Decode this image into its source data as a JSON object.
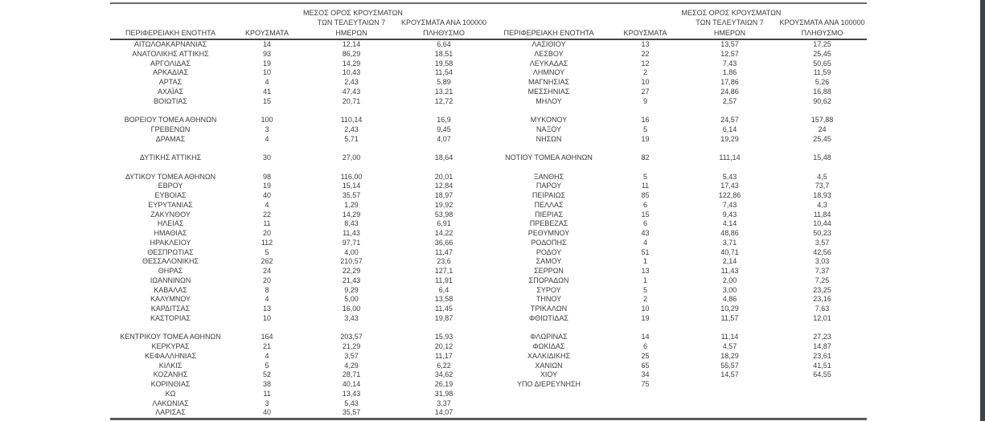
{
  "page": {
    "background": "#ffffff",
    "text_color": "#3c3c3e",
    "rule_color": "#5d5e61",
    "edge_bar_color": "#3e4347"
  },
  "table": {
    "headers": {
      "region": "ΠΕΡΙΦΕΡΕΙΑΚΗ ΕΝΟΤΗΤΑ",
      "cases": "ΚΡΟΥΣΜΑΤΑ",
      "avg7_line1": "ΜΕΣΟΣ ΟΡΟΣ ΚΡΟΥΣΜΑΤΩΝ",
      "avg7_line2": "ΤΩΝ ΤΕΛΕΥΤΑΙΩΝ 7",
      "avg7_line3": "ΗΜΕΡΩΝ",
      "per100k_line1": "ΚΡΟΥΣΜΑΤΑ ΑΝΑ 100000",
      "per100k_line2": "ΠΛΗΘΥΣΜΟ"
    },
    "rows": [
      {
        "left": [
          "ΑΙΤΩΛΟΑΚΑΡΝΑΝΙΑΣ",
          "14",
          "12,14",
          "6,64"
        ],
        "right": [
          "ΛΑΣΙΘΙΟΥ",
          "13",
          "13,57",
          "17,25"
        ]
      },
      {
        "left": [
          "ΑΝΑΤΟΛΙΚΗΣ ΑΤΤΙΚΗΣ",
          "93",
          "86,29",
          "18,51"
        ],
        "right": [
          "ΛΕΣΒΟΥ",
          "22",
          "12,57",
          "25,45"
        ]
      },
      {
        "left": [
          "ΑΡΓΟΛΙΔΑΣ",
          "19",
          "14,29",
          "19,58"
        ],
        "right": [
          "ΛΕΥΚΑΔΑΣ",
          "12",
          "7,43",
          "50,65"
        ]
      },
      {
        "left": [
          "ΑΡΚΑΔΙΑΣ",
          "10",
          "10,43",
          "11,54"
        ],
        "right": [
          "ΛΗΜΝΟΥ",
          "2",
          "1,86",
          "11,59"
        ]
      },
      {
        "left": [
          "ΑΡΤΑΣ",
          "4",
          "2,43",
          "5,89"
        ],
        "right": [
          "ΜΑΓΝΗΣΙΑΣ",
          "10",
          "17,86",
          "5,26"
        ]
      },
      {
        "left": [
          "ΑΧΑΪΑΣ",
          "41",
          "47,43",
          "13,21"
        ],
        "right": [
          "ΜΕΣΣΗΝΙΑΣ",
          "27",
          "24,86",
          "16,88"
        ]
      },
      {
        "left": [
          "ΒΟΙΩΤΙΑΣ",
          "15",
          "20,71",
          "12,72"
        ],
        "right": [
          "ΜΗΛΟΥ",
          "9",
          "2,57",
          "90,62"
        ]
      },
      {
        "left": [
          "",
          "",
          "",
          ""
        ],
        "right": [
          "",
          "",
          "",
          ""
        ]
      },
      {
        "left": [
          "ΒΟΡΕΙΟΥ ΤΟΜΕΑ ΑΘΗΝΩΝ",
          "100",
          "110,14",
          "16,9"
        ],
        "right": [
          "ΜΥΚΟΝΟΥ",
          "16",
          "24,57",
          "157,88"
        ]
      },
      {
        "left": [
          "ΓΡΕΒΕΝΩΝ",
          "3",
          "2,43",
          "9,45"
        ],
        "right": [
          "ΝΑΞΟΥ",
          "5",
          "6,14",
          "24"
        ]
      },
      {
        "left": [
          "ΔΡΑΜΑΣ",
          "4",
          "5,71",
          "4,07"
        ],
        "right": [
          "ΝΗΣΩΝ",
          "19",
          "19,29",
          "25,45"
        ]
      },
      {
        "left": [
          "",
          "",
          "",
          ""
        ],
        "right": [
          "",
          "",
          "",
          ""
        ]
      },
      {
        "left": [
          "ΔΥΤΙΚΗΣ ΑΤΤΙΚΗΣ",
          "30",
          "27,00",
          "18,64"
        ],
        "right": [
          "ΝΟΤΙΟΥ ΤΟΜΕΑ ΑΘΗΝΩΝ",
          "82",
          "111,14",
          "15,48"
        ]
      },
      {
        "left": [
          "",
          "",
          "",
          ""
        ],
        "right": [
          "",
          "",
          "",
          ""
        ]
      },
      {
        "left": [
          "ΔΥΤΙΚΟΥ ΤΟΜΕΑ ΑΘΗΝΩΝ",
          "98",
          "116,00",
          "20,01"
        ],
        "right": [
          "ΞΑΝΘΗΣ",
          "5",
          "5,43",
          "4,5"
        ]
      },
      {
        "left": [
          "ΕΒΡΟΥ",
          "19",
          "15,14",
          "12,84"
        ],
        "right": [
          "ΠΑΡΟΥ",
          "11",
          "17,43",
          "73,7"
        ]
      },
      {
        "left": [
          "ΕΥΒΟΙΑΣ",
          "40",
          "35,57",
          "18,97"
        ],
        "right": [
          "ΠΕΙΡΑΙΩΣ",
          "85",
          "122,86",
          "18,93"
        ]
      },
      {
        "left": [
          "ΕΥΡΥΤΑΝΙΑΣ",
          "4",
          "1,29",
          "19,92"
        ],
        "right": [
          "ΠΕΛΛΑΣ",
          "6",
          "7,43",
          "4,3"
        ]
      },
      {
        "left": [
          "ΖΑΚΥΝΘΟΥ",
          "22",
          "14,29",
          "53,98"
        ],
        "right": [
          "ΠΙΕΡΙΑΣ",
          "15",
          "9,43",
          "11,84"
        ]
      },
      {
        "left": [
          "ΗΛΕΙΑΣ",
          "11",
          "8,43",
          "6,91"
        ],
        "right": [
          "ΠΡΕΒΕΖΑΣ",
          "6",
          "4,14",
          "10,44"
        ]
      },
      {
        "left": [
          "ΗΜΑΘΙΑΣ",
          "20",
          "11,43",
          "14,22"
        ],
        "right": [
          "ΡΕΘΥΜΝΟΥ",
          "43",
          "48,86",
          "50,23"
        ]
      },
      {
        "left": [
          "ΗΡΑΚΛΕΙΟΥ",
          "112",
          "97,71",
          "36,66"
        ],
        "right": [
          "ΡΟΔΟΠΗΣ",
          "4",
          "3,71",
          "3,57"
        ]
      },
      {
        "left": [
          "ΘΕΣΠΡΩΤΙΑΣ",
          "5",
          "4,00",
          "11,47"
        ],
        "right": [
          "ΡΟΔΟΥ",
          "51",
          "40,71",
          "42,56"
        ]
      },
      {
        "left": [
          "ΘΕΣΣΑΛΟΝΙΚΗΣ",
          "262",
          "210,57",
          "23,6"
        ],
        "right": [
          "ΣΑΜΟΥ",
          "1",
          "2,14",
          "3,03"
        ]
      },
      {
        "left": [
          "ΘΗΡΑΣ",
          "24",
          "22,29",
          "127,1"
        ],
        "right": [
          "ΣΕΡΡΩΝ",
          "13",
          "11,43",
          "7,37"
        ]
      },
      {
        "left": [
          "ΙΩΑΝΝΙΝΩΝ",
          "20",
          "21,43",
          "11,91"
        ],
        "right": [
          "ΣΠΟΡΑΔΩΝ",
          "1",
          "2,00",
          "7,25"
        ]
      },
      {
        "left": [
          "ΚΑΒΑΛΑΣ",
          "8",
          "9,29",
          "6,4"
        ],
        "right": [
          "ΣΥΡΟΥ",
          "5",
          "3,00",
          "23,25"
        ]
      },
      {
        "left": [
          "ΚΑΛΥΜΝΟΥ",
          "4",
          "5,00",
          "13,58"
        ],
        "right": [
          "ΤΗΝΟΥ",
          "2",
          "4,86",
          "23,16"
        ]
      },
      {
        "left": [
          "ΚΑΡΔΙΤΣΑΣ",
          "13",
          "16,00",
          "11,45"
        ],
        "right": [
          "ΤΡΙΚΑΛΩΝ",
          "10",
          "10,29",
          "7,63"
        ]
      },
      {
        "left": [
          "ΚΑΣΤΟΡΙΑΣ",
          "10",
          "3,43",
          "19,87"
        ],
        "right": [
          "ΦΘΙΩΤΙΔΑΣ",
          "19",
          "11,57",
          "12,01"
        ]
      },
      {
        "left": [
          "",
          "",
          "",
          ""
        ],
        "right": [
          "",
          "",
          "",
          ""
        ]
      },
      {
        "left": [
          "ΚΕΝΤΡΙΚΟΥ ΤΟΜΕΑ ΑΘΗΝΩΝ",
          "164",
          "203,57",
          "15,93"
        ],
        "right": [
          "ΦΛΩΡΙΝΑΣ",
          "14",
          "11,14",
          "27,23"
        ]
      },
      {
        "left": [
          "ΚΕΡΚΥΡΑΣ",
          "21",
          "21,29",
          "20,12"
        ],
        "right": [
          "ΦΩΚΙΔΑΣ",
          "6",
          "4,57",
          "14,87"
        ]
      },
      {
        "left": [
          "ΚΕΦΑΛΛΗΝΙΑΣ",
          "4",
          "3,57",
          "11,17"
        ],
        "right": [
          "ΧΑΛΚΙΔΙΚΗΣ",
          "25",
          "18,29",
          "23,61"
        ]
      },
      {
        "left": [
          "ΚΙΛΚΙΣ",
          "5",
          "4,29",
          "6,22"
        ],
        "right": [
          "ΧΑΝΙΩΝ",
          "65",
          "55,57",
          "41,51"
        ]
      },
      {
        "left": [
          "ΚΟΖΑΝΗΣ",
          "52",
          "28,71",
          "34,62"
        ],
        "right": [
          "ΧΙΟΥ",
          "34",
          "14,57",
          "64,55"
        ]
      },
      {
        "left": [
          "ΚΟΡΙΝΘΙΑΣ",
          "38",
          "40,14",
          "26,19"
        ],
        "right": [
          "ΥΠΟ ΔΙΕΡΕΥΝΗΣΗ",
          "75",
          "",
          ""
        ]
      },
      {
        "left": [
          "ΚΩ",
          "11",
          "13,43",
          "31,98"
        ],
        "right": [
          "",
          "",
          "",
          ""
        ]
      },
      {
        "left": [
          "ΛΑΚΩΝΙΑΣ",
          "3",
          "5,43",
          "3,37"
        ],
        "right": [
          "",
          "",
          "",
          ""
        ]
      },
      {
        "left": [
          "ΛΑΡΙΣΑΣ",
          "40",
          "35,57",
          "14,07"
        ],
        "right": [
          "",
          "",
          "",
          ""
        ]
      }
    ]
  }
}
